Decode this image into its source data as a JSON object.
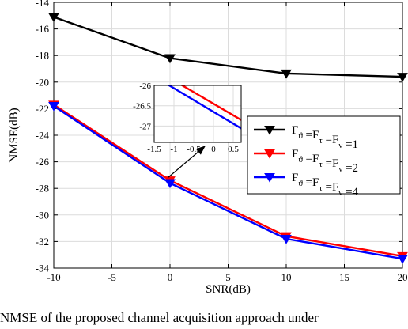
{
  "chart_data": {
    "type": "line",
    "xlabel": "SNR(dB)",
    "ylabel": "NMSE(dB)",
    "xlim": [
      -10,
      20
    ],
    "ylim": [
      -34,
      -14
    ],
    "xticks": [
      -10,
      -5,
      0,
      5,
      10,
      15,
      20
    ],
    "yticks": [
      -14,
      -16,
      -18,
      -20,
      -22,
      -24,
      -26,
      -28,
      -30,
      -32,
      -34
    ],
    "grid": true,
    "legend_position": "middle-right",
    "x": [
      -10,
      0,
      10,
      20
    ],
    "series": [
      {
        "name": "F_ϑ =F_τ =F_ν =1",
        "color": "#000000",
        "marker": "triangle-down",
        "values": [
          -15.1,
          -18.2,
          -19.35,
          -19.6
        ],
        "label_parts": [
          {
            "t": "F"
          },
          {
            "s": "ϑ"
          },
          {
            "t": " =F"
          },
          {
            "s": "τ"
          },
          {
            "t": " =F"
          },
          {
            "s": "ν"
          },
          {
            "t": " =1"
          }
        ]
      },
      {
        "name": "F_ϑ =F_τ =F_ν =2",
        "color": "#ff0000",
        "marker": "triangle-down",
        "values": [
          -21.7,
          -27.4,
          -31.6,
          -33.1
        ],
        "label_parts": [
          {
            "t": "F"
          },
          {
            "s": "ϑ"
          },
          {
            "t": " =F"
          },
          {
            "s": "τ"
          },
          {
            "t": " =F"
          },
          {
            "s": "ν"
          },
          {
            "t": " =2"
          }
        ]
      },
      {
        "name": "F_ϑ =F_τ =F_ν =4",
        "color": "#0000ff",
        "marker": "triangle-down",
        "values": [
          -21.8,
          -27.6,
          -31.8,
          -33.3
        ],
        "label_parts": [
          {
            "t": "F"
          },
          {
            "s": "ϑ"
          },
          {
            "t": " =F"
          },
          {
            "s": "τ"
          },
          {
            "t": " =F"
          },
          {
            "s": "ν"
          },
          {
            "t": " =4"
          }
        ]
      }
    ],
    "inset": {
      "xlim": [
        -1.5,
        0.7
      ],
      "ylim": [
        -27.4,
        -26.0
      ],
      "xticks": [
        -1.5,
        -1,
        -0.5,
        0,
        0.5
      ],
      "xtick_labels": [
        "-1.5",
        "-1",
        "-0.5",
        "0",
        "0.5"
      ],
      "yticks": [
        -26,
        -26.5,
        -27
      ],
      "ytick_labels": [
        "-26",
        "-26.5",
        "-27"
      ],
      "grid": true
    }
  },
  "caption": "NMSE of the proposed channel acquisition approach under"
}
